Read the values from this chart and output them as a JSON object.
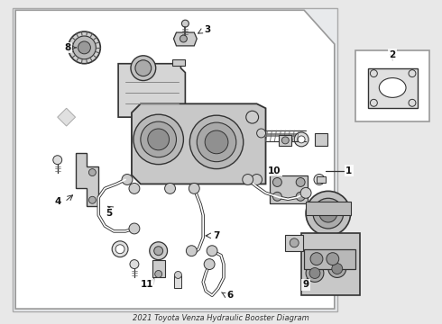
{
  "title": "2021 Toyota Venza Hydraulic Booster Diagram",
  "bg_color": "#e8e8e8",
  "white": "#ffffff",
  "border_color": "#999999",
  "line_color": "#333333",
  "dark_gray": "#555555",
  "mid_gray": "#888888",
  "light_gray": "#cccccc",
  "text_color": "#111111",
  "figsize": [
    4.9,
    3.6
  ],
  "dpi": 100
}
